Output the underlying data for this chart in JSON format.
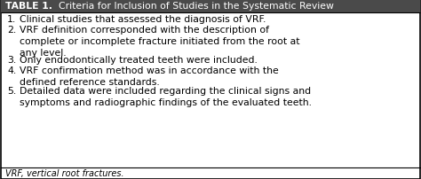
{
  "title_bold": "TABLE 1.",
  "title_normal": "  Criteria for Inclusion of Studies in the Systematic Review",
  "items": [
    [
      "1.",
      "Clinical studies that assessed the diagnosis of VRF."
    ],
    [
      "2.",
      "VRF definition corresponded with the description of\ncomplete or incomplete fracture initiated from the root at\nany level."
    ],
    [
      "3.",
      "Only endodontically treated teeth were included."
    ],
    [
      "4.",
      "VRF confirmation method was in accordance with the\ndefined reference standards."
    ],
    [
      "5.",
      "Detailed data were included regarding the clinical signs and\nsymptoms and radiographic findings of the evaluated teeth."
    ]
  ],
  "footnote": "VRF, vertical root fractures.",
  "bg_color": "#ffffff",
  "text_color": "#000000",
  "title_bg": "#4a4a4a",
  "title_text_color": "#ffffff",
  "border_color": "#000000",
  "font_size": 7.8,
  "title_font_size": 7.8,
  "footnote_font_size": 7.0,
  "fig_width": 4.74,
  "fig_height": 2.03,
  "dpi": 100
}
